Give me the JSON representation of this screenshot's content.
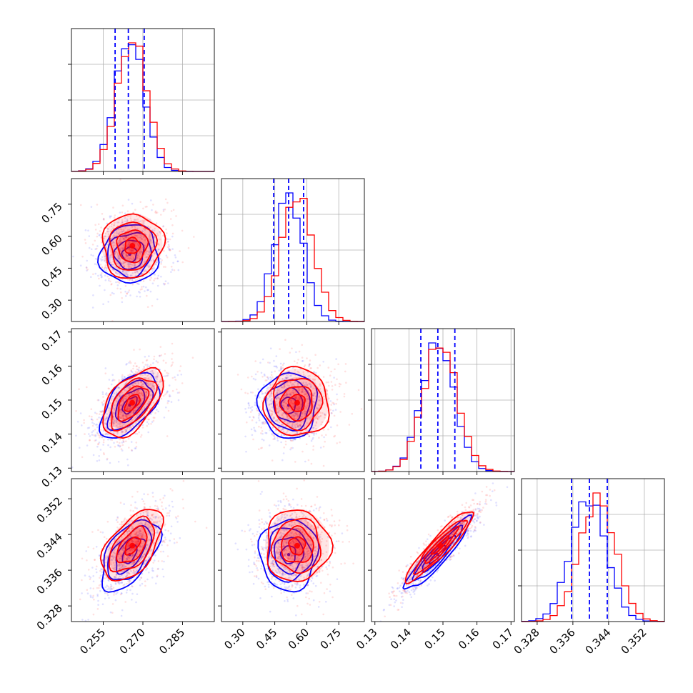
{
  "chart_data": {
    "type": "corner",
    "parameters": [
      {
        "range": [
          0.243,
          0.297
        ],
        "ticks": [
          0.255,
          0.27,
          0.285
        ],
        "tick_labels": [
          "0.255",
          "0.270",
          "0.285"
        ]
      },
      {
        "range": [
          0.2,
          0.87
        ],
        "ticks": [
          0.3,
          0.45,
          0.6,
          0.75
        ],
        "tick_labels": [
          "0.30",
          "0.45",
          "0.60",
          "0.75"
        ]
      },
      {
        "range": [
          0.129,
          0.171
        ],
        "ticks": [
          0.13,
          0.14,
          0.15,
          0.16,
          0.17
        ],
        "tick_labels": [
          "0.13",
          "0.14",
          "0.15",
          "0.16",
          "0.17"
        ]
      },
      {
        "range": [
          0.3245,
          0.3565
        ],
        "ticks": [
          0.328,
          0.336,
          0.344,
          0.352
        ],
        "tick_labels": [
          "0.328",
          "0.336",
          "0.344",
          "0.352"
        ]
      }
    ],
    "series": [
      {
        "color": "#0000ff",
        "means": [
          0.265,
          0.515,
          0.1485,
          0.3395
        ],
        "sigmas": [
          0.0055,
          0.068,
          0.0048,
          0.004
        ]
      },
      {
        "color": "#ff0000",
        "means": [
          0.266,
          0.555,
          0.1492,
          0.3415
        ],
        "sigmas": [
          0.0057,
          0.075,
          0.005,
          0.004
        ]
      }
    ],
    "quantile_lines": {
      "color": "#0000ff",
      "style": "dashed",
      "values": [
        [
          0.2595,
          0.2645,
          0.2705
        ],
        [
          0.445,
          0.515,
          0.585
        ],
        [
          0.1435,
          0.1485,
          0.1535
        ],
        [
          0.3357,
          0.3397,
          0.3437
        ]
      ]
    },
    "grid": true
  }
}
